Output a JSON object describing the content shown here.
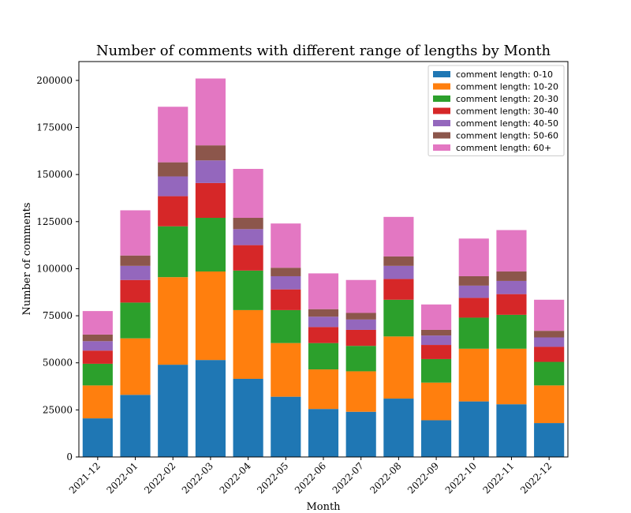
{
  "chart_data": {
    "type": "bar",
    "stacked": true,
    "title": "Number of comments with different range of lengths by Month",
    "xlabel": "Month",
    "ylabel": "Number of comments",
    "ylim": [
      0,
      210000
    ],
    "yticks": [
      0,
      25000,
      50000,
      75000,
      100000,
      125000,
      150000,
      175000,
      200000
    ],
    "ytick_labels": [
      "0",
      "25000",
      "50000",
      "75000",
      "100000",
      "125000",
      "150000",
      "175000",
      "200000"
    ],
    "legend_position": "top-right",
    "grid": false,
    "categories": [
      "2021-12",
      "2022-01",
      "2022-02",
      "2022-03",
      "2022-04",
      "2022-05",
      "2022-06",
      "2022-07",
      "2022-08",
      "2022-09",
      "2022-10",
      "2022-11",
      "2022-12"
    ],
    "series": [
      {
        "name": "comment length: 0-10",
        "color": "#1f77b4",
        "values": [
          20500,
          33000,
          49000,
          51500,
          41500,
          32000,
          25500,
          24000,
          31000,
          19500,
          29500,
          28000,
          18000
        ]
      },
      {
        "name": "comment length: 10-20",
        "color": "#ff7f0e",
        "values": [
          17500,
          30000,
          46500,
          47000,
          36500,
          28500,
          21000,
          21500,
          33000,
          20000,
          28000,
          29500,
          20000
        ]
      },
      {
        "name": "comment length: 20-30",
        "color": "#2ca02c",
        "values": [
          11500,
          19000,
          27000,
          28500,
          21000,
          17500,
          14000,
          13500,
          19500,
          12500,
          16500,
          18000,
          12500
        ]
      },
      {
        "name": "comment length: 30-40",
        "color": "#d62728",
        "values": [
          7000,
          12000,
          16000,
          18500,
          13500,
          11000,
          8500,
          8500,
          11000,
          7500,
          10500,
          11000,
          8000
        ]
      },
      {
        "name": "comment length: 40-50",
        "color": "#9467bd",
        "values": [
          5000,
          7500,
          10500,
          12000,
          8500,
          7000,
          5500,
          5500,
          7000,
          5000,
          6500,
          7000,
          5000
        ]
      },
      {
        "name": "comment length: 50-60",
        "color": "#8c564b",
        "values": [
          3500,
          5500,
          7500,
          8000,
          6000,
          4500,
          4000,
          3500,
          5000,
          3000,
          5000,
          5000,
          3500
        ]
      },
      {
        "name": "comment length: 60+",
        "color": "#e377c2",
        "values": [
          12500,
          24000,
          29500,
          35500,
          26000,
          23500,
          19000,
          17500,
          21000,
          13500,
          20000,
          22000,
          16500
        ]
      }
    ]
  }
}
